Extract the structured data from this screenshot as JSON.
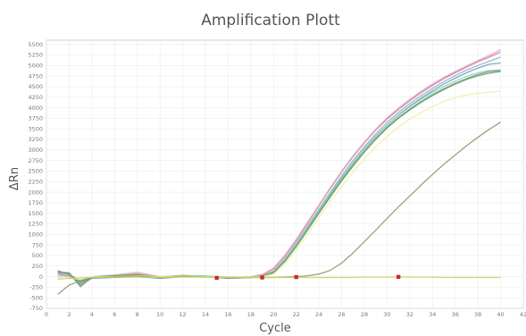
{
  "chart_data": {
    "type": "line",
    "title": "Amplification Plott",
    "xlabel": "Cycle",
    "ylabel": "ΔRn",
    "xlim": [
      0,
      40
    ],
    "ylim": [
      -750,
      5600
    ],
    "xticks": [
      0,
      2,
      4,
      6,
      8,
      10,
      12,
      14,
      16,
      18,
      20,
      22,
      24,
      26,
      28,
      30,
      32,
      34,
      36,
      38,
      40,
      42
    ],
    "yticks": [
      -750,
      -500,
      -250,
      0,
      250,
      500,
      750,
      1000,
      1250,
      1500,
      1750,
      2000,
      2250,
      2500,
      2750,
      3000,
      3250,
      3500,
      3750,
      4000,
      4250,
      4500,
      4750,
      5000,
      5250,
      5500
    ],
    "grid": true,
    "x": [
      1,
      2,
      3,
      4,
      6,
      8,
      10,
      12,
      14,
      16,
      17,
      18,
      19,
      20,
      21,
      22,
      23,
      24,
      25,
      26,
      27,
      28,
      29,
      30,
      31,
      32,
      33,
      34,
      35,
      36,
      37,
      38,
      39,
      40
    ],
    "series": [
      {
        "color": "#d47aa0",
        "values": [
          60,
          20,
          -180,
          -30,
          20,
          60,
          -10,
          20,
          0,
          -20,
          -20,
          -10,
          40,
          180,
          480,
          850,
          1260,
          1680,
          2090,
          2480,
          2840,
          3170,
          3470,
          3730,
          3960,
          4170,
          4360,
          4530,
          4690,
          4830,
          4960,
          5090,
          5200,
          5320
        ]
      },
      {
        "color": "#e0a8bd",
        "values": [
          20,
          0,
          -100,
          0,
          40,
          100,
          0,
          0,
          10,
          -10,
          -10,
          0,
          50,
          200,
          510,
          880,
          1290,
          1700,
          2110,
          2500,
          2860,
          3190,
          3490,
          3760,
          3990,
          4200,
          4390,
          4560,
          4720,
          4860,
          4990,
          5120,
          5240,
          5380
        ]
      },
      {
        "color": "#8cb0cc",
        "values": [
          80,
          60,
          -120,
          -20,
          0,
          20,
          -20,
          10,
          0,
          -30,
          -20,
          -10,
          20,
          130,
          420,
          790,
          1190,
          1600,
          2000,
          2390,
          2750,
          3080,
          3380,
          3650,
          3890,
          4100,
          4290,
          4460,
          4620,
          4760,
          4890,
          5000,
          5100,
          5200
        ]
      },
      {
        "color": "#6e9fb9",
        "values": [
          100,
          80,
          -200,
          -40,
          -20,
          0,
          -40,
          0,
          10,
          -40,
          -30,
          -20,
          0,
          100,
          380,
          740,
          1140,
          1550,
          1950,
          2330,
          2690,
          3020,
          3320,
          3590,
          3830,
          4040,
          4230,
          4400,
          4560,
          4700,
          4830,
          4940,
          5030,
          5060
        ]
      },
      {
        "color": "#8fcfc6",
        "values": [
          120,
          40,
          -80,
          0,
          30,
          40,
          0,
          20,
          20,
          -20,
          -20,
          -10,
          10,
          110,
          390,
          750,
          1150,
          1560,
          1960,
          2340,
          2700,
          3030,
          3330,
          3590,
          3820,
          4020,
          4200,
          4360,
          4500,
          4630,
          4740,
          4830,
          4880,
          4900
        ]
      },
      {
        "color": "#5f9a82",
        "values": [
          140,
          60,
          -140,
          -20,
          10,
          30,
          -30,
          0,
          0,
          -30,
          -30,
          -20,
          0,
          90,
          360,
          710,
          1100,
          1500,
          1890,
          2270,
          2620,
          2950,
          3250,
          3520,
          3750,
          3950,
          4130,
          4290,
          4430,
          4560,
          4670,
          4760,
          4820,
          4860
        ]
      },
      {
        "color": "#77a35a",
        "values": [
          110,
          90,
          -240,
          -10,
          20,
          50,
          -10,
          30,
          0,
          -20,
          -20,
          -10,
          10,
          100,
          370,
          720,
          1120,
          1520,
          1910,
          2290,
          2640,
          2970,
          3270,
          3540,
          3770,
          3970,
          4150,
          4310,
          4450,
          4580,
          4690,
          4790,
          4860,
          4880
        ]
      },
      {
        "color": "#eef0a6",
        "values": [
          -20,
          -40,
          -60,
          0,
          0,
          20,
          0,
          10,
          0,
          -10,
          -10,
          -10,
          0,
          60,
          300,
          630,
          1010,
          1400,
          1780,
          2140,
          2480,
          2790,
          3070,
          3320,
          3540,
          3730,
          3890,
          4030,
          4150,
          4240,
          4300,
          4340,
          4370,
          4390
        ]
      },
      {
        "color": "#8d9a6c",
        "values": [
          -420,
          -200,
          -100,
          -20,
          0,
          10,
          -20,
          0,
          -10,
          -20,
          -20,
          -20,
          -20,
          -20,
          -10,
          0,
          20,
          60,
          150,
          320,
          560,
          830,
          1100,
          1380,
          1650,
          1910,
          2170,
          2420,
          2660,
          2880,
          3100,
          3300,
          3490,
          3660
        ]
      },
      {
        "color": "#c9d15b",
        "values": [
          -60,
          -40,
          -30,
          -20,
          -10,
          -10,
          -20,
          -10,
          -10,
          -20,
          -20,
          -20,
          -20,
          -20,
          -20,
          -20,
          -20,
          -20,
          -20,
          -20,
          -20,
          -10,
          -10,
          -10,
          -10,
          -10,
          -10,
          -10,
          -20,
          -20,
          -20,
          -20,
          -20,
          -20
        ]
      }
    ],
    "markers": [
      {
        "x": 15,
        "y": -30,
        "color": "#cc2a2a"
      },
      {
        "x": 19,
        "y": -20,
        "color": "#cc2a2a"
      },
      {
        "x": 22,
        "y": -10,
        "color": "#cc2a2a"
      },
      {
        "x": 31,
        "y": -5,
        "color": "#cc2a2a"
      }
    ]
  }
}
